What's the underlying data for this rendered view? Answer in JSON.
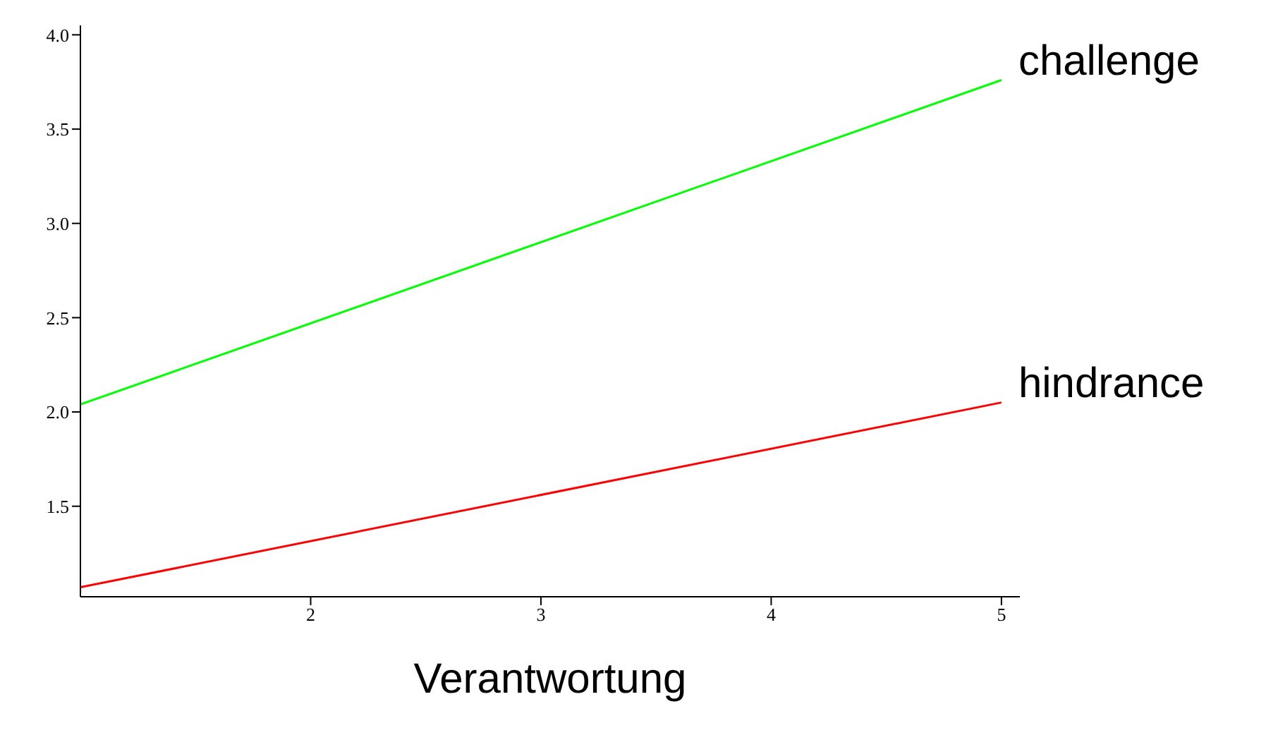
{
  "chart_data": {
    "type": "line",
    "xlabel": "Verantwortung",
    "x": [
      1,
      5
    ],
    "xlim": [
      1,
      5.08
    ],
    "xticks": [
      2,
      3,
      4,
      5
    ],
    "ylim": [
      1.02,
      4.05
    ],
    "yticks": [
      {
        "value": 1.5,
        "label": "1.5"
      },
      {
        "value": 2,
        "label": "2.0"
      },
      {
        "value": 2.5,
        "label": "2.5"
      },
      {
        "value": 3,
        "label": "3.0"
      },
      {
        "value": 3.5,
        "label": "3.5"
      },
      {
        "value": 4,
        "label": "4.0"
      }
    ],
    "grid": false,
    "legend": false,
    "marker": "none",
    "line_style": "solid",
    "series": [
      {
        "name": "challenge",
        "color": "#00ff00",
        "values": [
          2.04,
          3.76
        ]
      },
      {
        "name": "hindrance",
        "color": "#ff0000",
        "values": [
          1.07,
          2.05
        ]
      }
    ]
  }
}
